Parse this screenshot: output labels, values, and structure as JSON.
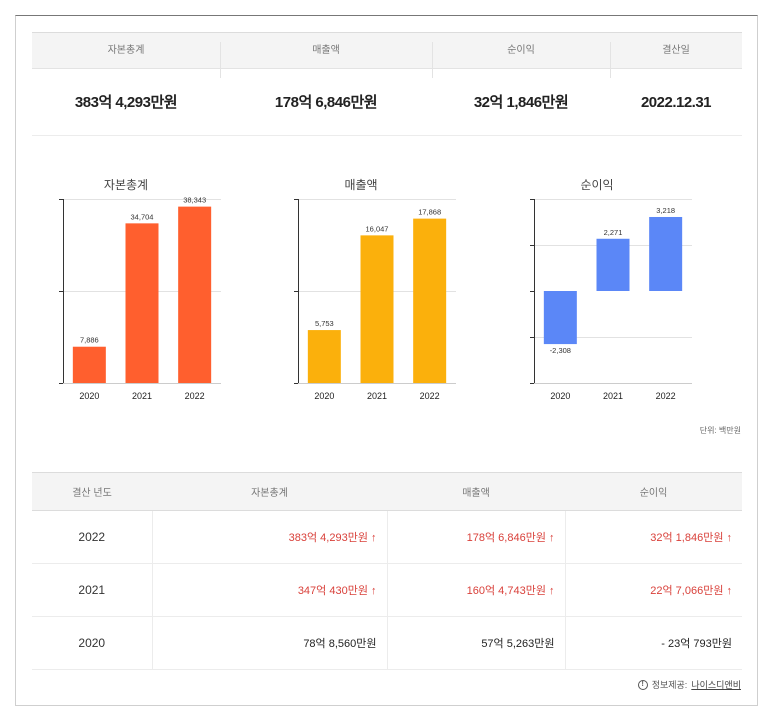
{
  "summary": {
    "headers": [
      "자본총계",
      "매출액",
      "순이익",
      "결산일"
    ],
    "values": [
      "383억 4,293만원",
      "178억 6,846만원",
      "32억 1,846만원",
      "2022.12.31"
    ]
  },
  "chart_data": [
    {
      "type": "bar",
      "title": "자본총계",
      "categories": [
        "2020",
        "2021",
        "2022"
      ],
      "values": [
        7886,
        34704,
        38343
      ],
      "labels": [
        "7,886",
        "34,704",
        "38,343"
      ],
      "ylim": [
        0,
        40000
      ],
      "grid": true,
      "color": "#ff5f2e"
    },
    {
      "type": "bar",
      "title": "매출액",
      "categories": [
        "2020",
        "2021",
        "2022"
      ],
      "values": [
        5753,
        16047,
        17868
      ],
      "labels": [
        "5,753",
        "16,047",
        "17,868"
      ],
      "ylim": [
        0,
        20000
      ],
      "grid": true,
      "color": "#fbb00c"
    },
    {
      "type": "bar",
      "title": "순이익",
      "categories": [
        "2020",
        "2021",
        "2022"
      ],
      "values": [
        -2308,
        2271,
        3218
      ],
      "labels": [
        "-2,308",
        "2,271",
        "3,218"
      ],
      "ylim": [
        -4000,
        4000
      ],
      "grid": true,
      "color": "#5b87f7"
    }
  ],
  "unit_note": "단위: 백만원",
  "table": {
    "headers": [
      "결산 년도",
      "자본총계",
      "매출액",
      "순이익"
    ],
    "rows": [
      {
        "year": "2022",
        "capital": "383억 4,293만원 ↑",
        "sales": "178억 6,846만원 ↑",
        "profit": "32억 1,846만원 ↑",
        "up": true
      },
      {
        "year": "2021",
        "capital": "347억 430만원 ↑",
        "sales": "160억 4,743만원 ↑",
        "profit": "22억 7,066만원 ↑",
        "up": true
      },
      {
        "year": "2020",
        "capital": "78억 8,560만원",
        "sales": "57억 5,263만원",
        "profit": "- 23억 793만원",
        "up": false
      }
    ]
  },
  "source": {
    "prefix": "정보제공:",
    "link": "나이스디앤비",
    "icon": "info-icon"
  }
}
